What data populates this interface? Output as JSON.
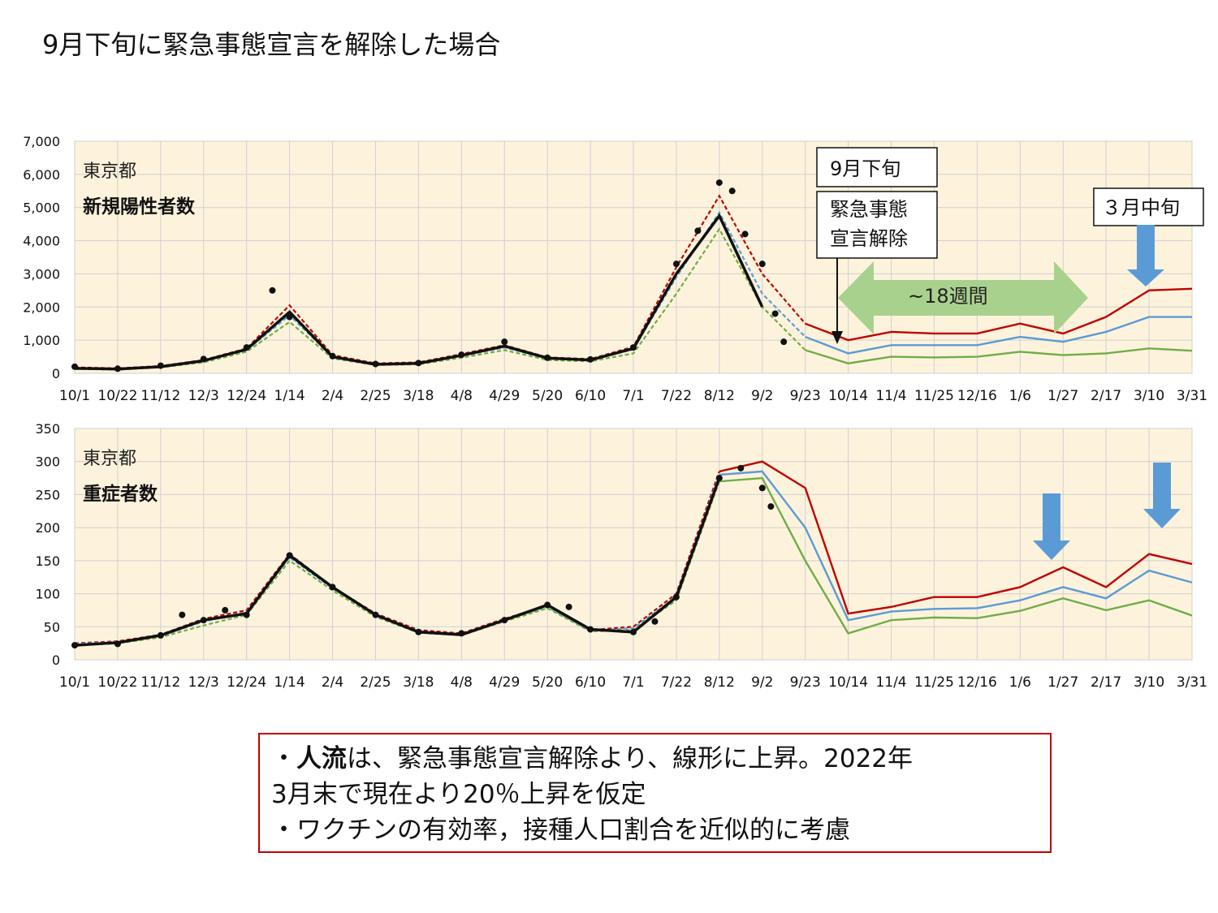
{
  "page_title": "9月下旬に緊急事態宣言を解除した場合",
  "colors": {
    "plot_bg": "#fdf3dc",
    "grid": "#d0d0d0",
    "red": "#c00000",
    "blue": "#5b9bd5",
    "green": "#70ad47",
    "black": "#111111",
    "arrow_green": "#a9d18e",
    "arrow_blue": "#5b9bd5"
  },
  "annotations": {
    "label_sept": "9月下旬",
    "label_lift_line1": "緊急事態",
    "label_lift_line2": "宣言解除",
    "label_weeks": "~18週間",
    "label_march": "３月中旬"
  },
  "notes": {
    "line1_prefix": "・",
    "line1_bold": "人流",
    "line1_rest": "は、緊急事態宣言解除より、線形に上昇。2022年",
    "line2": "3月末で現在より20％上昇を仮定",
    "line3": "・ワクチンの有効率，接種人口割合を近似的に考慮"
  },
  "chart_data": [
    {
      "type": "line",
      "title": "東京都",
      "subtitle": "新規陽性者数",
      "categories": [
        "10/1",
        "10/22",
        "11/12",
        "12/3",
        "12/24",
        "1/14",
        "2/4",
        "2/25",
        "3/18",
        "4/8",
        "4/29",
        "5/20",
        "6/10",
        "7/1",
        "7/22",
        "8/12",
        "9/2",
        "9/23",
        "10/14",
        "11/4",
        "11/25",
        "12/16",
        "1/6",
        "1/27",
        "2/17",
        "3/10",
        "3/31"
      ],
      "ylim": [
        0,
        7000
      ],
      "yticks": [
        0,
        1000,
        2000,
        3000,
        4000,
        5000,
        6000,
        7000
      ],
      "ytick_labels": [
        "0",
        "1,000",
        "2,000",
        "3,000",
        "4,000",
        "5,000",
        "6,000",
        "7,000"
      ],
      "grid": true,
      "series": [
        {
          "name": "",
          "color": "red",
          "dashed_until": 17,
          "values": [
            180,
            150,
            220,
            400,
            750,
            2050,
            550,
            300,
            330,
            580,
            850,
            480,
            430,
            800,
            3200,
            5350,
            3000,
            1500,
            1000,
            1250,
            1200,
            1200,
            1500,
            1200,
            1700,
            2500,
            2550
          ]
        },
        {
          "name": "",
          "color": "blue",
          "dashed_until": 17,
          "values": [
            150,
            130,
            200,
            370,
            700,
            1750,
            500,
            280,
            300,
            520,
            780,
            450,
            400,
            720,
            2900,
            4850,
            2400,
            1100,
            600,
            850,
            850,
            850,
            1100,
            950,
            1250,
            1700,
            1700
          ]
        },
        {
          "name": "",
          "color": "green",
          "dashed_until": 17,
          "values": [
            130,
            110,
            180,
            330,
            650,
            1550,
            450,
            250,
            270,
            470,
            700,
            400,
            360,
            600,
            2400,
            4350,
            2000,
            700,
            300,
            500,
            480,
            500,
            650,
            550,
            600,
            750,
            680
          ]
        },
        {
          "name": "",
          "color": "black",
          "solid_until": 16.3,
          "values": [
            150,
            130,
            200,
            380,
            720,
            1850,
            500,
            270,
            300,
            540,
            820,
            460,
            400,
            750,
            3000,
            4750,
            2000,
            null,
            null,
            null,
            null,
            null,
            null,
            null,
            null,
            null,
            null
          ]
        }
      ],
      "observed_points": [
        [
          0,
          200
        ],
        [
          1,
          140
        ],
        [
          2,
          230
        ],
        [
          3,
          430
        ],
        [
          4,
          780
        ],
        [
          4.6,
          2500
        ],
        [
          5,
          1700
        ],
        [
          6,
          520
        ],
        [
          7,
          280
        ],
        [
          8,
          310
        ],
        [
          9,
          560
        ],
        [
          10,
          950
        ],
        [
          11,
          470
        ],
        [
          12,
          420
        ],
        [
          13,
          780
        ],
        [
          14,
          3300
        ],
        [
          14.5,
          4300
        ],
        [
          15,
          5750
        ],
        [
          15.3,
          5500
        ],
        [
          15.6,
          4200
        ],
        [
          16,
          3300
        ],
        [
          16.3,
          1800
        ],
        [
          16.5,
          950
        ]
      ]
    },
    {
      "type": "line",
      "title": "東京都",
      "subtitle": "重症者数",
      "categories": [
        "10/1",
        "10/22",
        "11/12",
        "12/3",
        "12/24",
        "1/14",
        "2/4",
        "2/25",
        "3/18",
        "4/8",
        "4/29",
        "5/20",
        "6/10",
        "7/1",
        "7/22",
        "8/12",
        "9/2",
        "9/23",
        "10/14",
        "11/4",
        "11/25",
        "12/16",
        "1/6",
        "1/27",
        "2/17",
        "3/10",
        "3/31"
      ],
      "ylim": [
        0,
        350
      ],
      "yticks": [
        0,
        50,
        100,
        150,
        200,
        250,
        300,
        350
      ],
      "ytick_labels": [
        "0",
        "50",
        "100",
        "150",
        "200",
        "250",
        "300",
        "350"
      ],
      "grid": true,
      "series": [
        {
          "name": "",
          "color": "red",
          "dashed_until": 15.9,
          "values": [
            25,
            28,
            38,
            62,
            75,
            160,
            110,
            70,
            45,
            40,
            62,
            82,
            45,
            50,
            100,
            285,
            300,
            260,
            70,
            80,
            95,
            95,
            110,
            140,
            110,
            160,
            145
          ]
        },
        {
          "name": "",
          "color": "blue",
          "dashed_until": 15.9,
          "values": [
            24,
            27,
            36,
            58,
            72,
            155,
            108,
            68,
            43,
            39,
            60,
            80,
            44,
            48,
            95,
            280,
            285,
            200,
            60,
            73,
            77,
            78,
            90,
            110,
            93,
            135,
            117
          ]
        },
        {
          "name": "",
          "color": "green",
          "dashed_until": 15.9,
          "values": [
            22,
            25,
            34,
            52,
            68,
            150,
            105,
            65,
            41,
            37,
            58,
            78,
            43,
            45,
            90,
            270,
            275,
            150,
            40,
            60,
            64,
            63,
            74,
            93,
            75,
            90,
            67
          ]
        },
        {
          "name": "",
          "color": "black",
          "solid_until": 15.9,
          "values": [
            22,
            26,
            37,
            60,
            70,
            158,
            110,
            68,
            42,
            38,
            60,
            83,
            46,
            42,
            95,
            275,
            285,
            null,
            null,
            null,
            null,
            null,
            null,
            null,
            null,
            null,
            null
          ]
        }
      ],
      "observed_points": [
        [
          0,
          22
        ],
        [
          1,
          24
        ],
        [
          2,
          37
        ],
        [
          2.5,
          68
        ],
        [
          3,
          60
        ],
        [
          3.5,
          75
        ],
        [
          4,
          68
        ],
        [
          5,
          158
        ],
        [
          6,
          110
        ],
        [
          7,
          68
        ],
        [
          8,
          42
        ],
        [
          9,
          40
        ],
        [
          10,
          60
        ],
        [
          11,
          83
        ],
        [
          11.5,
          80
        ],
        [
          12,
          46
        ],
        [
          13,
          42
        ],
        [
          13.5,
          58
        ],
        [
          14,
          95
        ],
        [
          15,
          275
        ],
        [
          15.5,
          290
        ],
        [
          16,
          260
        ],
        [
          16.2,
          232
        ]
      ]
    }
  ]
}
